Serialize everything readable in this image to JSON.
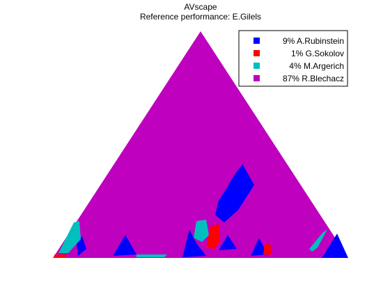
{
  "chart_data": {
    "type": "heatmap",
    "title": "AVscape",
    "subtitle": "Reference performance: E.Gilels",
    "xlabel": "",
    "ylabel": "",
    "grid": false,
    "legend_position": "top-right",
    "series": [
      {
        "name": "9% A.Rubinstein",
        "percent": 9,
        "color": "#0000ff"
      },
      {
        "name": "1% G.Sokolov",
        "percent": 1,
        "color": "#ff0000"
      },
      {
        "name": "4% M.Argerich",
        "percent": 4,
        "color": "#00bfbf"
      },
      {
        "name": "87% R.Blechacz",
        "percent": 87,
        "color": "#bf00bf"
      }
    ]
  }
}
